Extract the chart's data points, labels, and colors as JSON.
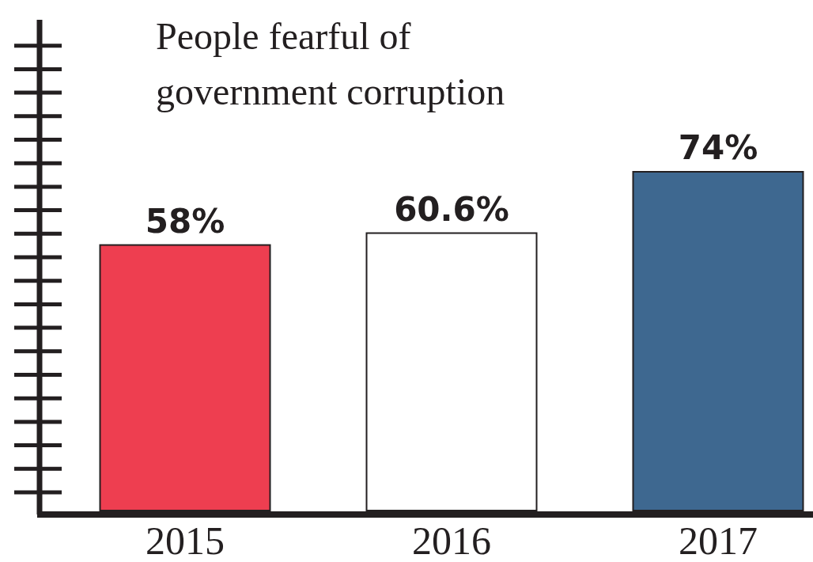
{
  "chart_data": {
    "type": "bar",
    "title": "People fearful of government corruption",
    "categories": [
      "2015",
      "2016",
      "2017"
    ],
    "values": [
      58,
      60.6,
      74
    ],
    "colors": [
      "#ee3e50",
      "#ffffff",
      "#3e6890"
    ],
    "value_labels": [
      "58%",
      "60.6%",
      "74%"
    ],
    "tick_labels": "x"
  }
}
